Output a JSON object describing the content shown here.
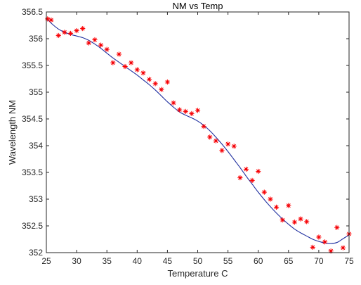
{
  "chart_data": {
    "type": "scatter",
    "title": "NM vs Temp",
    "xlabel": "Temperature C",
    "ylabel": "Wavelength NM",
    "xlim": [
      25,
      75
    ],
    "ylim": [
      352,
      356.5
    ],
    "xticks": [
      25,
      30,
      35,
      40,
      45,
      50,
      55,
      60,
      65,
      70,
      75
    ],
    "yticks": [
      352,
      352.5,
      353,
      353.5,
      354,
      354.5,
      355,
      355.5,
      356,
      356.5
    ],
    "grid": false,
    "series": [
      {
        "marker": "asterisk",
        "color": "#ff0000",
        "marker_fill": "#000080",
        "x": [
          25.2,
          25.8,
          27,
          28,
          29,
          30,
          31,
          32,
          33,
          34,
          35,
          36,
          37,
          38,
          39,
          40,
          41,
          42,
          43,
          44,
          45,
          46,
          47,
          48,
          49,
          50,
          51,
          52,
          53,
          54,
          55,
          56,
          57,
          58,
          59,
          60,
          61,
          62,
          63,
          64,
          65,
          66,
          67,
          68,
          69,
          70,
          71,
          72,
          73,
          74,
          75
        ],
        "y": [
          356.37,
          356.35,
          356.06,
          356.12,
          356.1,
          356.15,
          356.19,
          355.92,
          355.98,
          355.88,
          355.8,
          355.55,
          355.71,
          355.48,
          355.55,
          355.42,
          355.36,
          355.24,
          355.16,
          355.05,
          355.19,
          354.8,
          354.67,
          354.64,
          354.6,
          354.66,
          354.36,
          354.16,
          354.09,
          353.91,
          354.03,
          353.99,
          353.4,
          353.56,
          353.35,
          353.52,
          353.13,
          353.0,
          352.85,
          352.61,
          352.88,
          352.57,
          352.63,
          352.58,
          352.1,
          352.29,
          352.2,
          352.03,
          352.47,
          352.09,
          352.35
        ]
      },
      {
        "line": "fit",
        "color": "#1f2f9f",
        "x": [
          25,
          26,
          27,
          28,
          29,
          30,
          31,
          32,
          33,
          34,
          35,
          36,
          37,
          38,
          39,
          40,
          41,
          42,
          43,
          44,
          45,
          46,
          47,
          48,
          49,
          50,
          51,
          52,
          53,
          54,
          55,
          56,
          57,
          58,
          59,
          60,
          61,
          62,
          63,
          64,
          65,
          66,
          67,
          68,
          69,
          70,
          71,
          72,
          73,
          74,
          75
        ],
        "y": [
          356.38,
          356.27,
          356.18,
          356.12,
          356.08,
          356.05,
          356.02,
          355.97,
          355.9,
          355.82,
          355.73,
          355.64,
          355.56,
          355.48,
          355.4,
          355.32,
          355.23,
          355.14,
          355.04,
          354.93,
          354.82,
          354.72,
          354.63,
          354.57,
          354.52,
          354.46,
          354.38,
          354.28,
          354.16,
          354.03,
          353.89,
          353.74,
          353.59,
          353.43,
          353.28,
          353.13,
          352.99,
          352.86,
          352.74,
          352.63,
          352.53,
          352.44,
          352.37,
          352.31,
          352.25,
          352.21,
          352.18,
          352.17,
          352.19,
          352.26,
          352.33
        ]
      }
    ]
  }
}
